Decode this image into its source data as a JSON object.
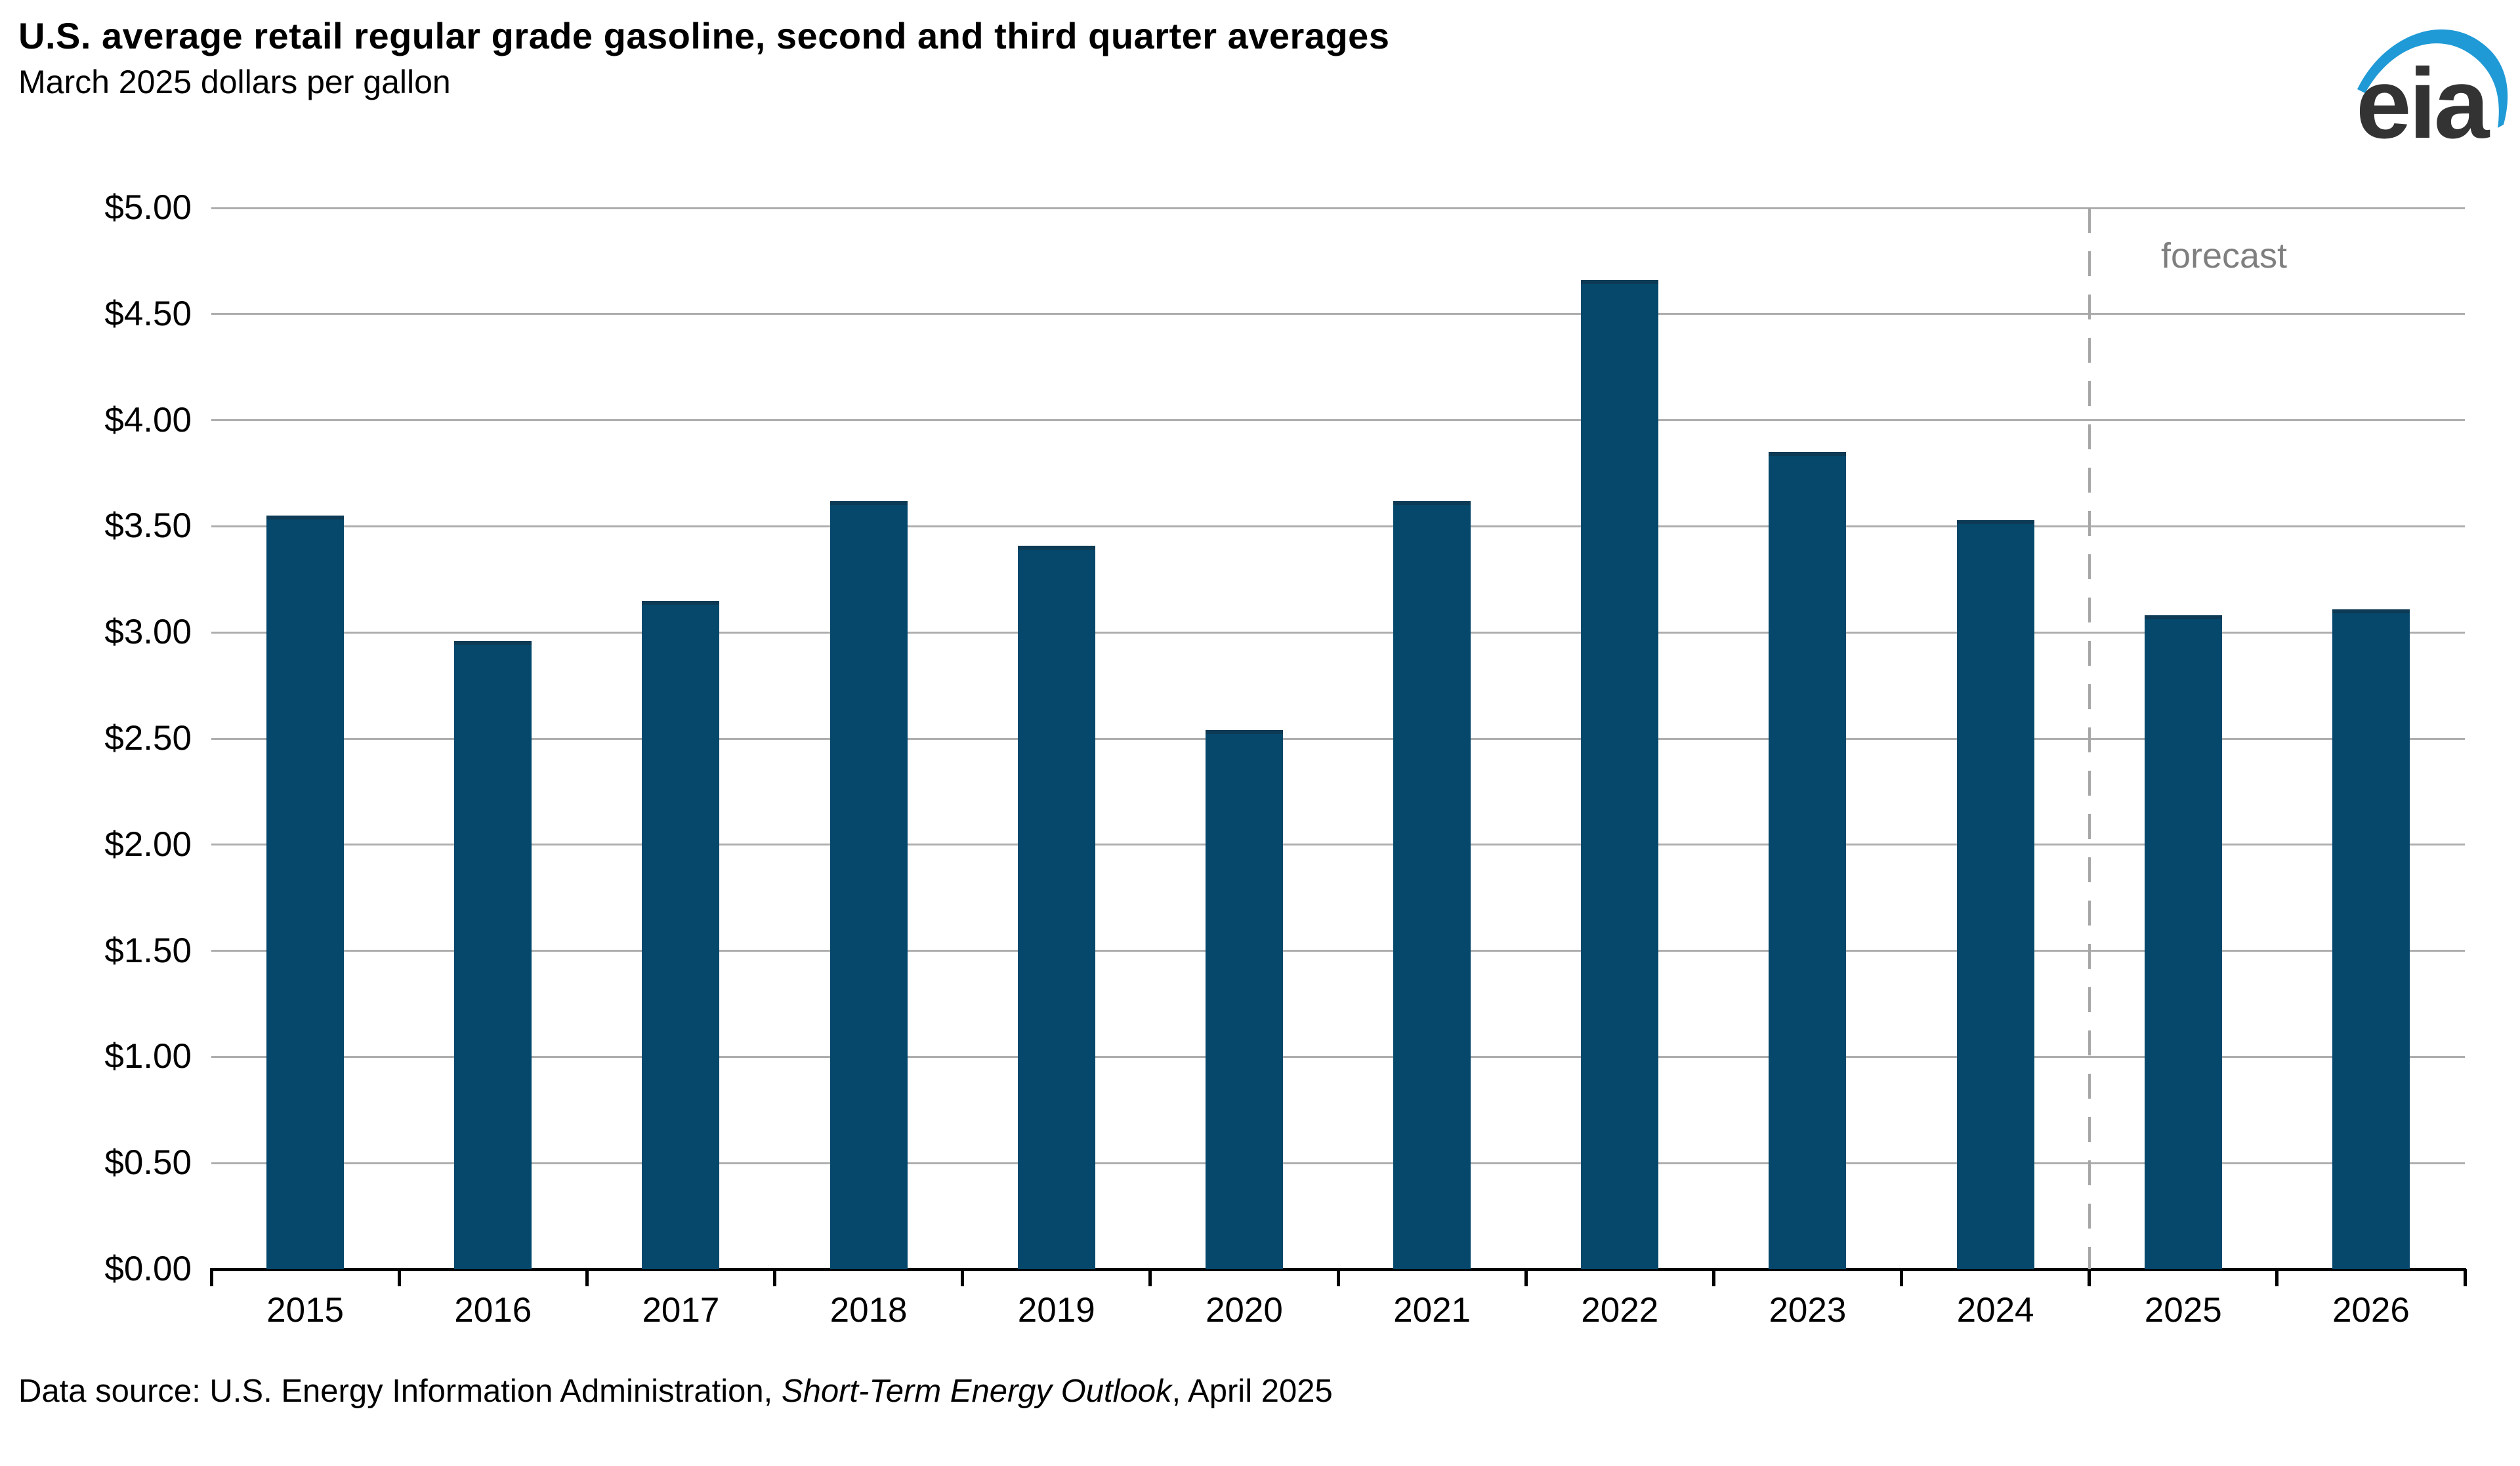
{
  "header": {
    "title": "U.S. average retail regular grade gasoline, second and third quarter averages",
    "subtitle": "March 2025 dollars per gallon"
  },
  "logo": {
    "text": "eia",
    "text_color": "#333333",
    "swoosh_color": "#1f9ad6"
  },
  "chart_data": {
    "type": "bar",
    "title": "U.S. average retail regular grade gasoline, second and third quarter averages",
    "subtitle": "March 2025 dollars per gallon",
    "categories": [
      "2015",
      "2016",
      "2017",
      "2018",
      "2019",
      "2020",
      "2021",
      "2022",
      "2023",
      "2024",
      "2025",
      "2026"
    ],
    "values": [
      3.55,
      2.96,
      3.15,
      3.62,
      3.41,
      2.54,
      3.62,
      4.66,
      3.85,
      3.53,
      3.08,
      3.11
    ],
    "unit": "March 2025 dollars per gallon",
    "ylim": [
      0,
      5
    ],
    "ytick_step": 0.5,
    "ytick_labels": [
      "$0.00",
      "$0.50",
      "$1.00",
      "$1.50",
      "$2.00",
      "$2.50",
      "$3.00",
      "$3.50",
      "$4.00",
      "$4.50",
      "$5.00"
    ],
    "grid": "horizontal",
    "bar_color": "#05486c",
    "gridline_color": "#aeaeae",
    "axis_color": "#000000",
    "forecast": {
      "label": "forecast",
      "starts_at_category": "2025",
      "divider_after_category": "2024",
      "line_style": "dashed",
      "line_color": "#a6a6a6",
      "label_color": "#7f7f7f"
    }
  },
  "footer": {
    "source_prefix": "Data source: U.S. Energy Information Administration, ",
    "source_italic": "Short-Term Energy Outlook",
    "source_suffix": ", April 2025"
  }
}
